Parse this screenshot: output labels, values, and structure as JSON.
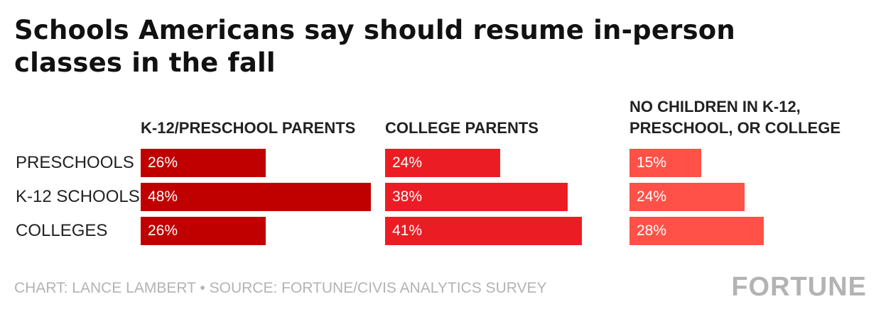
{
  "title": "Schools Americans say should resume in-person classes in the fall",
  "footer": {
    "credit": "CHART: LANCE LAMBERT • SOURCE: FORTUNE/CIVIS ANALYTICS SURVEY",
    "brand": "FORTUNE"
  },
  "colors": {
    "panel_1": "#c00000",
    "panel_2": "#ec1c24",
    "panel_3": "#ff5147",
    "text": "#222222",
    "muted": "#b3b3b3"
  },
  "chart_data": {
    "type": "bar",
    "orientation": "horizontal",
    "categories": [
      "PRESCHOOLS",
      "K-12 SCHOOLS",
      "COLLEGES"
    ],
    "series": [
      {
        "name": "K-12/PRESCHOOL PARENTS",
        "values": [
          26,
          48,
          26
        ],
        "labels": [
          "26%",
          "48%",
          "26%"
        ]
      },
      {
        "name": "COLLEGE PARENTS",
        "values": [
          24,
          38,
          41
        ],
        "labels": [
          "24%",
          "38%",
          "41%"
        ]
      },
      {
        "name": "NO CHILDREN IN K-12, PRESCHOOL, OR COLLEGE",
        "values": [
          15,
          24,
          28
        ],
        "labels": [
          "15%",
          "24%",
          "28%"
        ]
      }
    ],
    "unit": "%",
    "xlim": [
      0,
      48
    ],
    "grid": false,
    "axes_visible": false
  }
}
